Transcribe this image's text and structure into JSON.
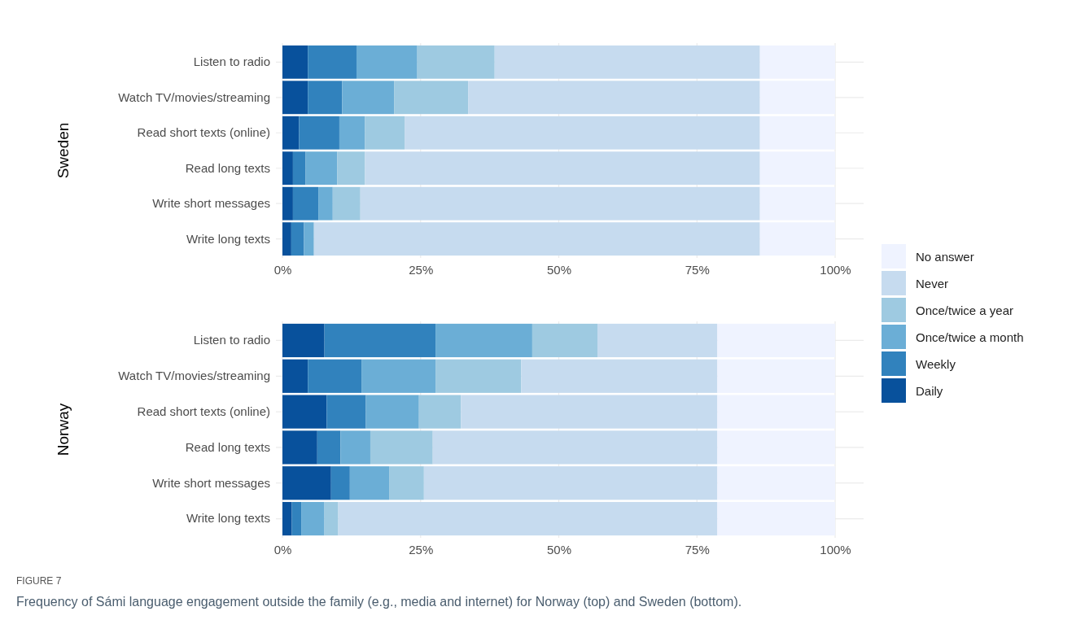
{
  "chart_data": [
    {
      "type": "bar",
      "orientation": "horizontal",
      "stacked": true,
      "ylabel": "Sweden",
      "categories": [
        "Listen to radio",
        "Watch TV/movies/streaming",
        "Read short texts (online)",
        "Read long texts",
        "Write short messages",
        "Write long texts"
      ],
      "series": [
        {
          "name": "Daily",
          "color": "#08519c",
          "values": [
            4.6,
            4.6,
            3.0,
            1.9,
            1.9,
            1.6
          ]
        },
        {
          "name": "Weekly",
          "color": "#3182bd",
          "values": [
            8.8,
            6.2,
            7.3,
            2.3,
            4.6,
            2.3
          ]
        },
        {
          "name": "Once/twice a month",
          "color": "#6baed6",
          "values": [
            11.0,
            9.4,
            4.6,
            5.7,
            2.6,
            1.8
          ]
        },
        {
          "name": "Once/twice a year",
          "color": "#9ecae1",
          "values": [
            14.0,
            13.4,
            7.2,
            5.0,
            5.0,
            0
          ]
        },
        {
          "name": "Never",
          "color": "#c6dbef",
          "values": [
            48.0,
            52.8,
            64.3,
            71.5,
            72.3,
            80.7
          ]
        },
        {
          "name": "No answer",
          "color": "#eff3ff",
          "values": [
            13.6,
            13.6,
            13.6,
            13.6,
            13.6,
            13.6
          ]
        }
      ],
      "xlim": [
        0,
        100
      ],
      "xticks": [
        {
          "value": 0,
          "label": "0%"
        },
        {
          "value": 25,
          "label": "25%"
        },
        {
          "value": 50,
          "label": "50%"
        },
        {
          "value": 75,
          "label": "75%"
        },
        {
          "value": 100,
          "label": "100%"
        }
      ],
      "grid": true,
      "legend": "right"
    },
    {
      "type": "bar",
      "orientation": "horizontal",
      "stacked": true,
      "ylabel": "Norway",
      "categories": [
        "Listen to radio",
        "Watch TV/movies/streaming",
        "Read short texts (online)",
        "Read long texts",
        "Write short messages",
        "Write long texts"
      ],
      "series": [
        {
          "color": "#08519c",
          "values": [
            7.6,
            4.6,
            8.0,
            6.3,
            8.8,
            1.7
          ]
        },
        {
          "color": "#3182bd",
          "values": [
            20.1,
            9.7,
            7.1,
            4.2,
            3.4,
            1.7
          ]
        },
        {
          "color": "#6baed6",
          "values": [
            17.5,
            13.4,
            9.6,
            5.4,
            7.1,
            4.2
          ]
        },
        {
          "color": "#9ecae1",
          "values": [
            11.8,
            15.5,
            7.6,
            11.3,
            6.3,
            2.5
          ]
        },
        {
          "color": "#c6dbef",
          "values": [
            21.7,
            35.5,
            46.4,
            51.5,
            53.1,
            68.6
          ]
        },
        {
          "color": "#eff3ff",
          "values": [
            21.3,
            21.3,
            21.3,
            21.3,
            21.3,
            21.3
          ]
        }
      ],
      "xlim": [
        0,
        100
      ],
      "xticks": [
        {
          "value": 0,
          "label": "0%"
        },
        {
          "value": 25,
          "label": "25%"
        },
        {
          "value": 50,
          "label": "50%"
        },
        {
          "value": 75,
          "label": "75%"
        },
        {
          "value": 100,
          "label": "100%"
        }
      ],
      "grid": true,
      "annotations": [
        "FIGURE 7",
        "Frequency of Sámi language engagement outside the family (e.g., media and internet) for Norway (top) and Sweden (bottom)."
      ]
    }
  ]
}
